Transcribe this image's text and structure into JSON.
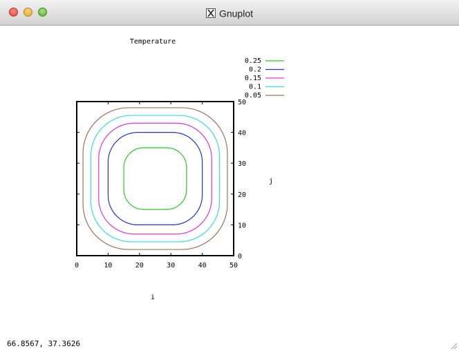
{
  "window": {
    "title": "Gnuplot",
    "status_coords": "66.8567,  37.3626"
  },
  "chart_data": {
    "type": "contour",
    "title": "Temperature",
    "xlabel": "i",
    "ylabel": "j",
    "xlim": [
      0,
      50
    ],
    "ylim": [
      0,
      50
    ],
    "xticks": [
      "0",
      "10",
      "20",
      "30",
      "40",
      "50"
    ],
    "yticks": [
      "0",
      "10",
      "20",
      "30",
      "40",
      "50"
    ],
    "legend_position": "top-right",
    "series": [
      {
        "name": "0.25",
        "color": "#22cc22",
        "x": [
          15,
          35
        ],
        "y": [
          15,
          35
        ]
      },
      {
        "name": "0.2",
        "color": "#2233cc",
        "x": [
          10,
          40
        ],
        "y": [
          10,
          40
        ]
      },
      {
        "name": "0.15",
        "color": "#dd33dd",
        "x": [
          7,
          43
        ],
        "y": [
          7,
          43
        ]
      },
      {
        "name": "0.1",
        "color": "#33dddd",
        "x": [
          4.5,
          45.5
        ],
        "y": [
          4.5,
          45.5
        ]
      },
      {
        "name": "0.05",
        "color": "#a0705a",
        "x": [
          2,
          48
        ],
        "y": [
          2,
          48
        ]
      }
    ]
  }
}
